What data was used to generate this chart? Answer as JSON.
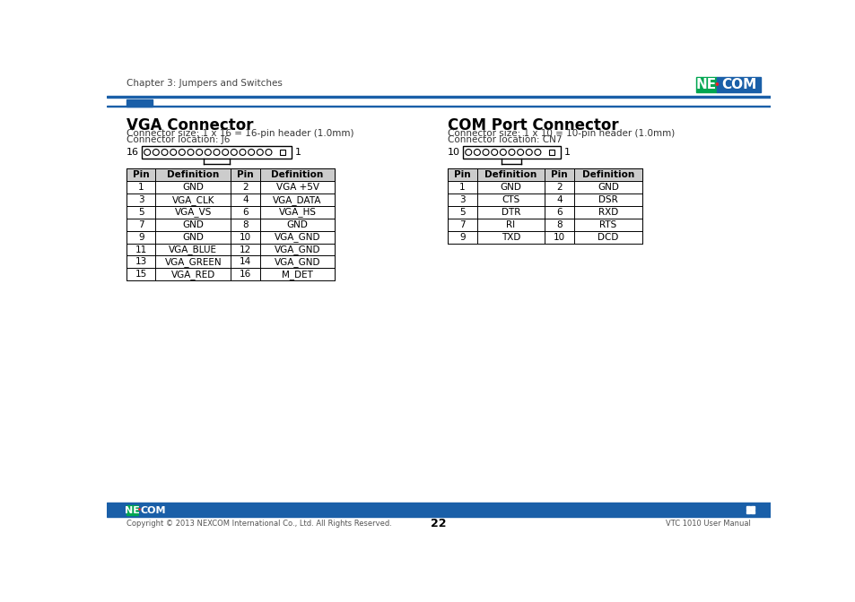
{
  "page_title": "Chapter 3: Jumpers and Switches",
  "page_number": "22",
  "footer_text": "Copyright © 2013 NEXCOM International Co., Ltd. All Rights Reserved.",
  "footer_right": "VTC 1010 User Manual",
  "bg_color": "#ffffff",
  "vga_title": "VGA Connector",
  "vga_size": "Connector size: 1 x 16 = 16-pin header (1.0mm)",
  "vga_loc": "Connector location: J6",
  "com_title": "COM Port Connector",
  "com_size": "Connector size: 1 x 10 = 10-pin header (1.0mm)",
  "com_loc": "Connector location: CN7",
  "vga_pins": 16,
  "com_pins": 10,
  "vga_table": [
    [
      "Pin",
      "Definition",
      "Pin",
      "Definition"
    ],
    [
      "1",
      "GND",
      "2",
      "VGA +5V"
    ],
    [
      "3",
      "VGA_CLK",
      "4",
      "VGA_DATA"
    ],
    [
      "5",
      "VGA_VS",
      "6",
      "VGA_HS"
    ],
    [
      "7",
      "GND",
      "8",
      "GND"
    ],
    [
      "9",
      "GND",
      "10",
      "VGA_GND"
    ],
    [
      "11",
      "VGA_BLUE",
      "12",
      "VGA_GND"
    ],
    [
      "13",
      "VGA_GREEN",
      "14",
      "VGA_GND"
    ],
    [
      "15",
      "VGA_RED",
      "16",
      "M_DET"
    ]
  ],
  "com_table": [
    [
      "Pin",
      "Definition",
      "Pin",
      "Definition"
    ],
    [
      "1",
      "GND",
      "2",
      "GND"
    ],
    [
      "3",
      "CTS",
      "4",
      "DSR"
    ],
    [
      "5",
      "DTR",
      "6",
      "RXD"
    ],
    [
      "7",
      "RI",
      "8",
      "RTS"
    ],
    [
      "9",
      "TXD",
      "10",
      "DCD"
    ]
  ],
  "nexcom_green": "#00a651",
  "nexcom_blue": "#1a5fa8",
  "nexcom_red": "#ed1c24",
  "table_header_bg": "#cccccc",
  "footer_bar_color": "#1a5fa8"
}
